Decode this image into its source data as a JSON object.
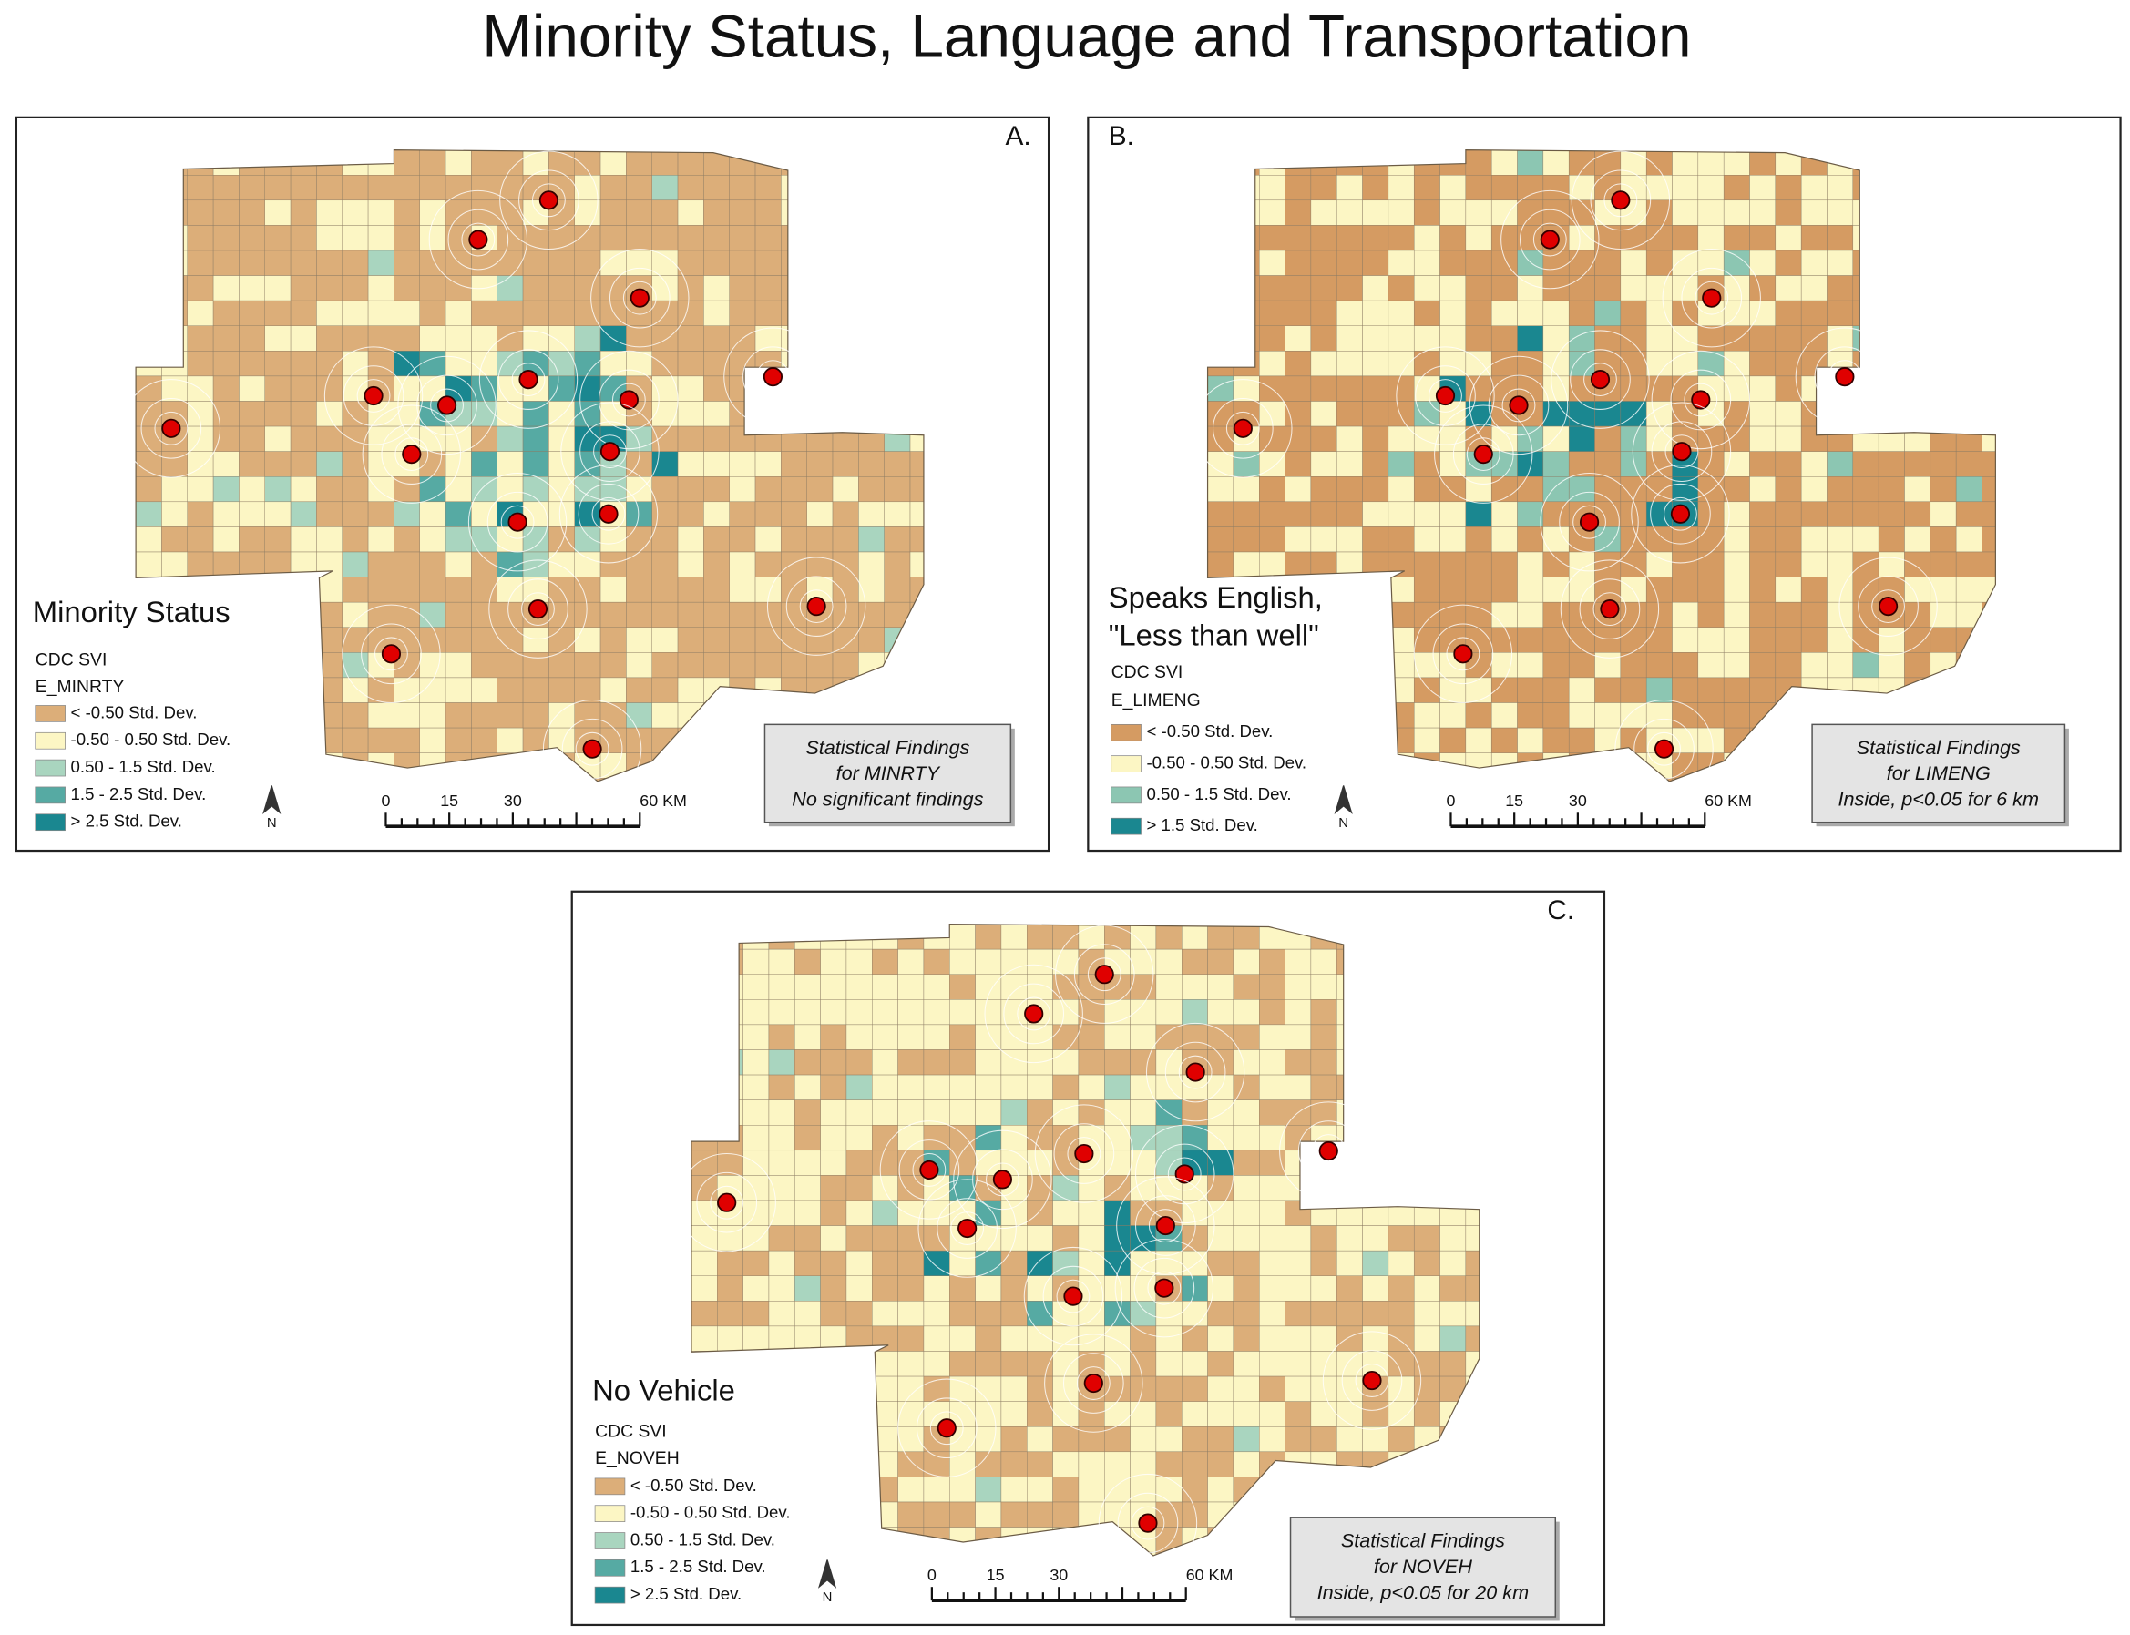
{
  "title": "Minority Status, Language and Transportation",
  "panels": [
    {
      "label": "A.",
      "legend": {
        "title": [
          "Minority Status"
        ],
        "source": "CDC SVI",
        "variable": "E_MINRTY",
        "items": [
          {
            "label": "< -0.50 Std. Dev.",
            "color": "#dcae79"
          },
          {
            "label": "-0.50 - 0.50 Std. Dev.",
            "color": "#fcf6c4"
          },
          {
            "label": "0.50 - 1.5 Std. Dev.",
            "color": "#a9d5bf"
          },
          {
            "label": "1.5 - 2.5 Std. Dev.",
            "color": "#56aaa3"
          },
          {
            "label": "> 2.5 Std. Dev.",
            "color": "#1a8790"
          }
        ]
      },
      "scale_bar": [
        "0",
        "15",
        "30",
        "60 KM"
      ],
      "north": "N",
      "findings": [
        "Statistical Findings",
        "for MINRTY",
        "No significant findings"
      ]
    },
    {
      "label": "B.",
      "legend": {
        "title": [
          "Speaks English,",
          "\"Less than well\""
        ],
        "source": "CDC SVI",
        "variable": "E_LIMENG",
        "items": [
          {
            "label": "< -0.50 Std. Dev.",
            "color": "#d59b62"
          },
          {
            "label": "-0.50 - 0.50 Std. Dev.",
            "color": "#fcf6c4"
          },
          {
            "label": "0.50 - 1.5 Std. Dev.",
            "color": "#8cc6b2"
          },
          {
            "label": "> 1.5 Std. Dev.",
            "color": "#1a8790"
          }
        ]
      },
      "scale_bar": [
        "0",
        "15",
        "30",
        "60 KM"
      ],
      "north": "N",
      "findings": [
        "Statistical Findings",
        "for LIMENG",
        "Inside, p<0.05 for 6 km"
      ]
    },
    {
      "label": "C.",
      "legend": {
        "title": [
          "No Vehicle"
        ],
        "source": "CDC SVI",
        "variable": "E_NOVEH",
        "items": [
          {
            "label": "< -0.50 Std. Dev.",
            "color": "#dcae79"
          },
          {
            "label": "-0.50 - 0.50 Std. Dev.",
            "color": "#fcf6c4"
          },
          {
            "label": "0.50 - 1.5 Std. Dev.",
            "color": "#a9d5bf"
          },
          {
            "label": "1.5 - 2.5 Std. Dev.",
            "color": "#56aaa3"
          },
          {
            "label": "> 2.5 Std. Dev.",
            "color": "#1a8790"
          }
        ]
      },
      "scale_bar": [
        "0",
        "15",
        "30",
        "60 KM"
      ],
      "north": "N",
      "findings": [
        "Statistical Findings",
        "for NOVEH",
        "Inside, p<0.05 for 20 km"
      ]
    }
  ]
}
